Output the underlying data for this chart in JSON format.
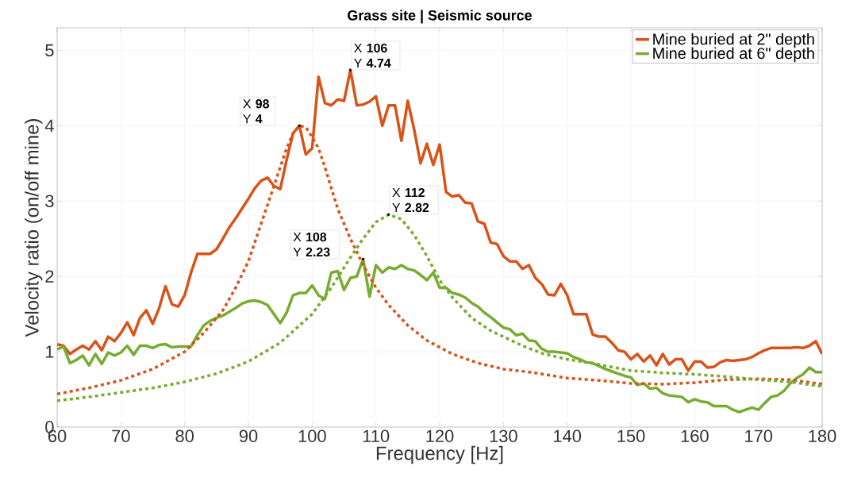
{
  "chart_data": {
    "type": "line",
    "title": "Grass site | Seismic source",
    "xlabel": "Frequency [Hz]",
    "ylabel": "Velocity ratio (on/off mine)",
    "xlim": [
      60,
      180
    ],
    "ylim": [
      0,
      5.3
    ],
    "xticks": [
      60,
      70,
      80,
      90,
      100,
      110,
      120,
      130,
      140,
      150,
      160,
      170,
      180
    ],
    "yticks": [
      0,
      1,
      2,
      3,
      4,
      5
    ],
    "grid": true,
    "legend": "top right",
    "marker": "none",
    "series": [
      {
        "name": "Mine buried at 2\" depth",
        "color": "#d95319",
        "line_style": "solid",
        "x": [
          60,
          61,
          62,
          63,
          64,
          65,
          66,
          67,
          68,
          69,
          70,
          71,
          72,
          73,
          74,
          75,
          76,
          77,
          78,
          79,
          80,
          81,
          82,
          83,
          84,
          85,
          86,
          87,
          88,
          89,
          90,
          91,
          92,
          93,
          94,
          95,
          96,
          97,
          98,
          99,
          100,
          101,
          102,
          103,
          104,
          105,
          106,
          107,
          108,
          109,
          110,
          111,
          112,
          113,
          114,
          115,
          116,
          117,
          118,
          119,
          120,
          121,
          122,
          123,
          124,
          125,
          126,
          127,
          128,
          129,
          130,
          131,
          132,
          133,
          134,
          135,
          136,
          137,
          138,
          139,
          140,
          141,
          142,
          143,
          144,
          145,
          146,
          147,
          148,
          149,
          150,
          151,
          152,
          153,
          154,
          155,
          156,
          157,
          158,
          159,
          160,
          161,
          162,
          163,
          164,
          165,
          166,
          167,
          168,
          169,
          170,
          171,
          172,
          173,
          174,
          175,
          176,
          177,
          178,
          179,
          180
        ],
        "values": [
          1.1,
          1.08,
          0.97,
          1.03,
          1.08,
          1.03,
          1.14,
          1.02,
          1.2,
          1.14,
          1.25,
          1.39,
          1.22,
          1.45,
          1.55,
          1.37,
          1.58,
          1.87,
          1.63,
          1.6,
          1.75,
          2.05,
          2.3,
          2.3,
          2.3,
          2.36,
          2.5,
          2.65,
          2.77,
          2.9,
          3.03,
          3.17,
          3.27,
          3.31,
          3.2,
          3.16,
          3.55,
          3.9,
          4.0,
          3.62,
          3.7,
          4.65,
          4.3,
          4.27,
          4.35,
          4.33,
          4.74,
          4.27,
          4.28,
          4.32,
          4.39,
          4.0,
          4.27,
          4.27,
          3.8,
          4.33,
          3.95,
          3.5,
          3.76,
          3.48,
          3.75,
          3.12,
          3.06,
          3.08,
          2.98,
          2.97,
          2.73,
          2.7,
          2.45,
          2.43,
          2.27,
          2.2,
          2.2,
          2.1,
          2.15,
          1.98,
          1.9,
          1.76,
          1.75,
          1.9,
          1.75,
          1.5,
          1.5,
          1.5,
          1.23,
          1.2,
          1.2,
          1.12,
          1.02,
          1.0,
          0.9,
          0.97,
          0.87,
          0.95,
          0.82,
          0.97,
          0.83,
          0.9,
          0.9,
          0.75,
          0.87,
          0.87,
          0.79,
          0.8,
          0.86,
          0.89,
          0.88,
          0.89,
          0.9,
          0.93,
          0.98,
          1.02,
          1.05,
          1.05,
          1.05,
          1.05,
          1.06,
          1.05,
          1.08,
          1.14,
          0.97
        ]
      },
      {
        "name": "Mine buried at 6\" depth",
        "color": "#77ac30",
        "line_style": "solid",
        "x": [
          60,
          61,
          62,
          63,
          64,
          65,
          66,
          67,
          68,
          69,
          70,
          71,
          72,
          73,
          74,
          75,
          76,
          77,
          78,
          79,
          80,
          81,
          82,
          83,
          84,
          85,
          86,
          87,
          88,
          89,
          90,
          91,
          92,
          93,
          94,
          95,
          96,
          97,
          98,
          99,
          100,
          101,
          102,
          103,
          104,
          105,
          106,
          107,
          108,
          109,
          110,
          111,
          112,
          113,
          114,
          115,
          116,
          117,
          118,
          119,
          120,
          121,
          122,
          123,
          124,
          125,
          126,
          127,
          128,
          129,
          130,
          131,
          132,
          133,
          134,
          135,
          136,
          137,
          138,
          139,
          140,
          141,
          142,
          143,
          144,
          145,
          146,
          147,
          148,
          149,
          150,
          151,
          152,
          153,
          154,
          155,
          156,
          157,
          158,
          159,
          160,
          161,
          162,
          163,
          164,
          165,
          166,
          167,
          168,
          169,
          170,
          171,
          172,
          173,
          174,
          175,
          176,
          177,
          178,
          179,
          180
        ],
        "values": [
          1.03,
          1.07,
          0.85,
          0.89,
          0.95,
          0.82,
          0.97,
          0.84,
          0.99,
          0.95,
          0.99,
          1.08,
          0.96,
          1.08,
          1.08,
          1.05,
          1.09,
          1.1,
          1.06,
          1.07,
          1.07,
          1.07,
          1.22,
          1.35,
          1.41,
          1.45,
          1.48,
          1.53,
          1.58,
          1.64,
          1.67,
          1.68,
          1.66,
          1.62,
          1.5,
          1.38,
          1.52,
          1.75,
          1.78,
          1.78,
          1.88,
          1.75,
          1.7,
          2.05,
          2.07,
          1.82,
          1.98,
          2.0,
          2.23,
          1.73,
          2.15,
          2.05,
          2.12,
          2.1,
          2.15,
          2.1,
          2.08,
          2.02,
          1.95,
          2.05,
          1.85,
          1.85,
          1.78,
          1.76,
          1.72,
          1.65,
          1.6,
          1.52,
          1.46,
          1.39,
          1.32,
          1.3,
          1.22,
          1.24,
          1.15,
          1.14,
          1.04,
          1.0,
          1.0,
          0.99,
          0.98,
          0.93,
          0.9,
          0.86,
          0.85,
          0.81,
          0.77,
          0.74,
          0.71,
          0.68,
          0.66,
          0.56,
          0.58,
          0.51,
          0.52,
          0.45,
          0.42,
          0.41,
          0.4,
          0.33,
          0.37,
          0.34,
          0.33,
          0.28,
          0.28,
          0.28,
          0.23,
          0.2,
          0.23,
          0.26,
          0.23,
          0.32,
          0.4,
          0.42,
          0.48,
          0.58,
          0.65,
          0.7,
          0.79,
          0.73,
          0.73
        ]
      },
      {
        "color": "#d95319",
        "line_style": "dotted",
        "x": [
          60,
          65,
          70,
          75,
          80,
          83,
          86,
          88,
          90,
          92,
          94,
          96,
          97,
          98,
          99,
          100,
          101,
          102,
          104,
          106,
          108,
          110,
          112,
          115,
          118,
          122,
          126,
          130,
          135,
          140,
          145,
          150,
          155,
          160,
          165,
          170,
          175,
          180
        ],
        "values": [
          0.44,
          0.52,
          0.62,
          0.77,
          1.0,
          1.25,
          1.55,
          1.85,
          2.2,
          2.7,
          3.2,
          3.7,
          3.9,
          4.0,
          3.98,
          3.85,
          3.7,
          3.45,
          2.9,
          2.5,
          2.15,
          1.85,
          1.62,
          1.35,
          1.15,
          0.97,
          0.85,
          0.77,
          0.72,
          0.65,
          0.62,
          0.58,
          0.57,
          0.59,
          0.63,
          0.64,
          0.63,
          0.57
        ]
      },
      {
        "color": "#77ac30",
        "line_style": "dotted",
        "x": [
          60,
          65,
          70,
          75,
          80,
          85,
          90,
          95,
          100,
          103,
          106,
          108,
          110,
          112,
          114,
          116,
          118,
          120,
          122,
          125,
          128,
          130,
          133,
          136,
          140,
          145,
          150,
          155,
          160,
          165,
          170,
          175,
          180
        ],
        "values": [
          0.35,
          0.4,
          0.46,
          0.52,
          0.6,
          0.71,
          0.87,
          1.12,
          1.5,
          1.85,
          2.25,
          2.5,
          2.72,
          2.82,
          2.76,
          2.55,
          2.27,
          1.95,
          1.72,
          1.45,
          1.28,
          1.2,
          1.08,
          0.98,
          0.9,
          0.83,
          0.75,
          0.72,
          0.7,
          0.67,
          0.63,
          0.6,
          0.54
        ]
      }
    ],
    "annotations": [
      {
        "text": "X **98** Y **4**",
        "x": 98,
        "y": 4
      },
      {
        "text": "X **106** Y **4.74**",
        "x": 106,
        "y": 4.74
      },
      {
        "text": "X **108** Y **2.23**",
        "x": 108,
        "y": 2.23
      },
      {
        "text": "X **112** Y **2.82**",
        "x": 112,
        "y": 2.82
      }
    ]
  }
}
